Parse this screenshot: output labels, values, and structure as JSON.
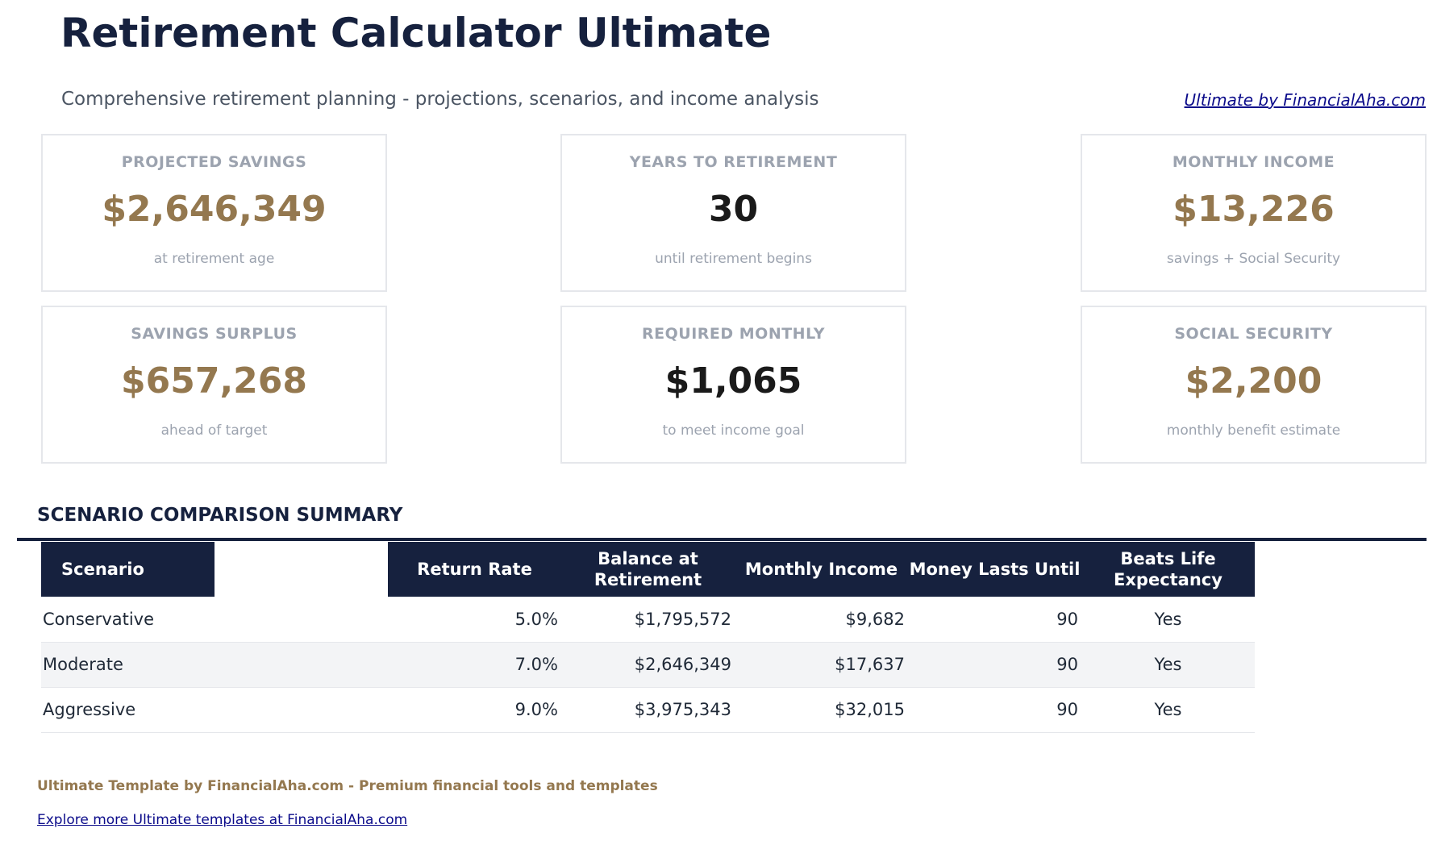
{
  "header": {
    "title": "Retirement Calculator Ultimate",
    "subtitle": "Comprehensive retirement planning - projections, scenarios, and income analysis",
    "brand_link": "Ultimate by FinancialAha.com"
  },
  "cards": [
    {
      "label": "PROJECTED SAVINGS",
      "value": "$2,646,349",
      "sub": "at retirement age"
    },
    {
      "label": "YEARS TO RETIREMENT",
      "value": "30",
      "sub": "until retirement begins"
    },
    {
      "label": "MONTHLY INCOME",
      "value": "$13,226",
      "sub": "savings + Social Security"
    },
    {
      "label": "SAVINGS SURPLUS",
      "value": "$657,268",
      "sub": "ahead of target"
    },
    {
      "label": "REQUIRED MONTHLY",
      "value": "$1,065",
      "sub": "to meet income goal"
    },
    {
      "label": "SOCIAL SECURITY",
      "value": "$2,200",
      "sub": "monthly benefit estimate"
    }
  ],
  "scenarios": {
    "title": "SCENARIO COMPARISON SUMMARY",
    "columns": [
      "Scenario",
      "",
      "Return Rate",
      "Balance at Retirement",
      "Monthly Income",
      "Money Lasts Until",
      "Beats Life Expectancy"
    ],
    "rows": [
      [
        "Conservative",
        "",
        "5.0%",
        "$1,795,572",
        "$9,682",
        "90",
        "Yes"
      ],
      [
        "Moderate",
        "",
        "7.0%",
        "$2,646,349",
        "$17,637",
        "90",
        "Yes"
      ],
      [
        "Aggressive",
        "",
        "9.0%",
        "$3,975,343",
        "$32,015",
        "90",
        "Yes"
      ]
    ]
  },
  "footer": {
    "tagline": "Ultimate Template by FinancialAha.com - Premium financial tools and templates",
    "link": "Explore more Ultimate templates at FinancialAha.com"
  },
  "colors": {
    "navy": "#16213e",
    "gold": "#94784f",
    "muted": "#9ca3af"
  }
}
